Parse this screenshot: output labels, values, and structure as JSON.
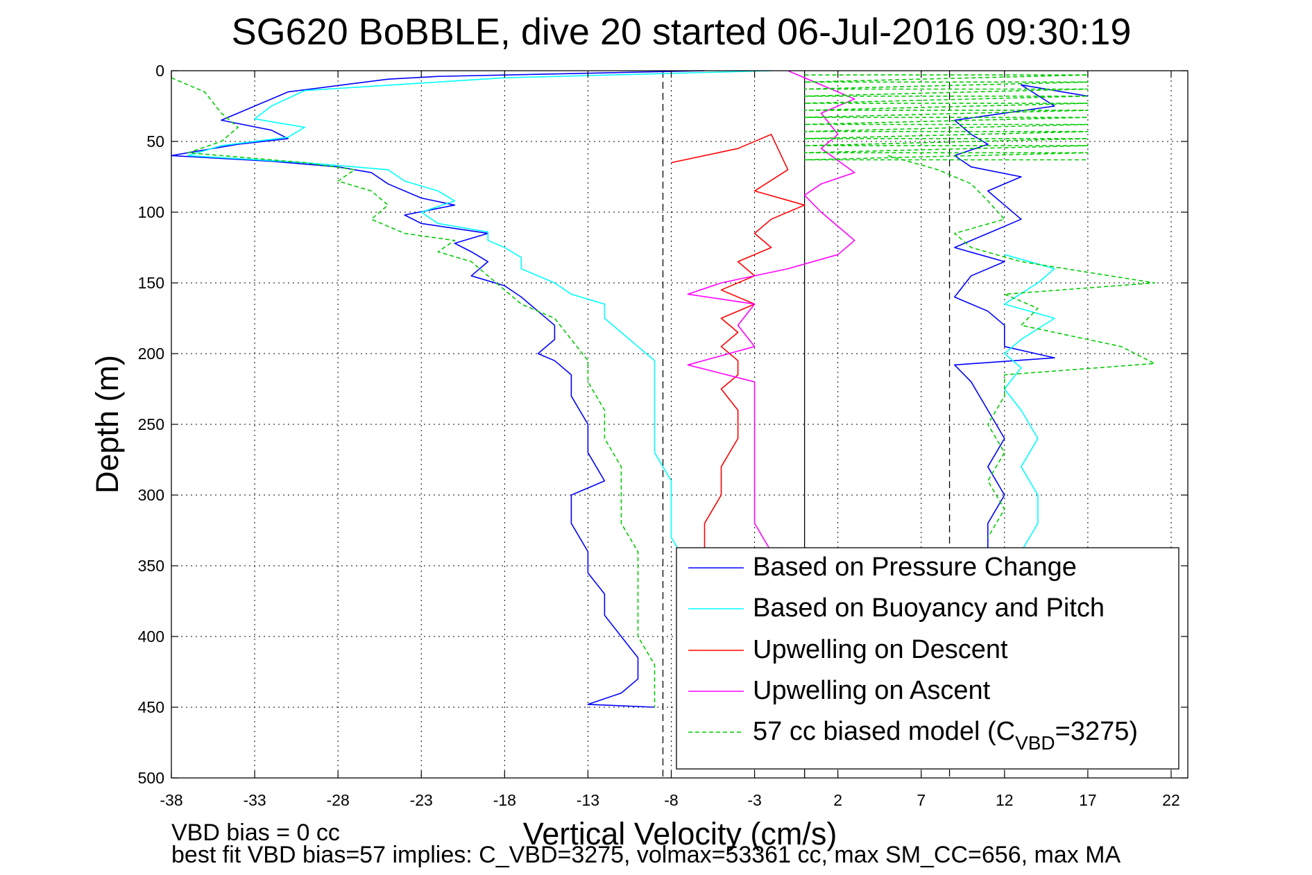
{
  "chart_data": {
    "type": "line",
    "title": "SG620 BoBBLE, dive 20 started 06-Jul-2016 09:30:19",
    "xlabel": "Vertical Velocity (cm/s)",
    "ylabel": "Depth (m)",
    "xlim": [
      -38,
      23
    ],
    "ylim": [
      0,
      500
    ],
    "y_reversed": true,
    "grid": true,
    "x_ticks": [
      -38,
      -33,
      -28,
      -23,
      -18,
      -13,
      -8,
      -3,
      2,
      7,
      12,
      17,
      22
    ],
    "y_ticks": [
      0,
      50,
      100,
      150,
      200,
      250,
      300,
      350,
      400,
      450,
      500
    ],
    "vertical_lines": [
      {
        "x": -8.5,
        "style": "dashed"
      },
      {
        "x": 0,
        "style": "solid"
      },
      {
        "x": 8.7,
        "style": "dashed"
      }
    ],
    "legend_position": "bottom-right",
    "legend": {
      "items": [
        {
          "text": "Based on Pressure Change",
          "color": "#0000ff",
          "dash": false
        },
        {
          "text": "Based on Buoyancy and Pitch",
          "color": "#00ffff",
          "dash": false
        },
        {
          "text": "Upwelling on Descent",
          "color": "#ff0000",
          "dash": false
        },
        {
          "text": "Upwelling on Ascent",
          "color": "#ff00ff",
          "dash": false
        }
      ],
      "biased_prefix": "57 cc biased model (C",
      "biased_sub": "VBD",
      "biased_suffix": "=3275)",
      "biased_color": "#00cc00"
    },
    "series": [
      {
        "name": "Based on Pressure Change",
        "color": "#0000ff",
        "dash": false,
        "descent": [
          [
            -6,
            0
          ],
          [
            -22,
            4
          ],
          [
            -25,
            6
          ],
          [
            -31,
            15
          ],
          [
            -33,
            25
          ],
          [
            -35,
            35
          ],
          [
            -32,
            42
          ],
          [
            -31,
            48
          ],
          [
            -34,
            52
          ],
          [
            -38,
            60
          ],
          [
            -32,
            64
          ],
          [
            -28,
            68
          ],
          [
            -26,
            72
          ],
          [
            -25,
            80
          ],
          [
            -23,
            90
          ],
          [
            -21,
            95
          ],
          [
            -24,
            102
          ],
          [
            -23,
            108
          ],
          [
            -19,
            115
          ],
          [
            -21,
            122
          ],
          [
            -20,
            128
          ],
          [
            -19,
            135
          ],
          [
            -20,
            145
          ],
          [
            -18,
            152
          ],
          [
            -17,
            160
          ],
          [
            -16,
            170
          ],
          [
            -15,
            180
          ],
          [
            -15,
            190
          ],
          [
            -16,
            200
          ],
          [
            -15,
            205
          ],
          [
            -14,
            215
          ],
          [
            -14,
            230
          ],
          [
            -13,
            250
          ],
          [
            -13,
            270
          ],
          [
            -12,
            290
          ],
          [
            -14,
            300
          ],
          [
            -14,
            320
          ],
          [
            -13,
            340
          ],
          [
            -13,
            355
          ],
          [
            -12,
            370
          ],
          [
            -12,
            385
          ],
          [
            -11,
            400
          ],
          [
            -10,
            415
          ],
          [
            -10,
            430
          ],
          [
            -11,
            440
          ],
          [
            -13,
            448
          ],
          [
            -9,
            450
          ]
        ],
        "ascent": [
          [
            17,
            18
          ],
          [
            13,
            10
          ],
          [
            15,
            25
          ],
          [
            9,
            35
          ],
          [
            10,
            45
          ],
          [
            11,
            52
          ],
          [
            9,
            60
          ],
          [
            10,
            68
          ],
          [
            13,
            75
          ],
          [
            11,
            85
          ],
          [
            12,
            95
          ],
          [
            13,
            105
          ],
          [
            11,
            115
          ],
          [
            9,
            125
          ],
          [
            12,
            135
          ],
          [
            10,
            145
          ],
          [
            9,
            160
          ],
          [
            11,
            170
          ],
          [
            12,
            180
          ],
          [
            12,
            195
          ],
          [
            15,
            203
          ],
          [
            9,
            208
          ],
          [
            10,
            220
          ],
          [
            11,
            240
          ],
          [
            12,
            260
          ],
          [
            11,
            280
          ],
          [
            12,
            300
          ],
          [
            11,
            320
          ],
          [
            11,
            340
          ]
        ]
      },
      {
        "name": "Based on Buoyancy and Pitch",
        "color": "#00ffff",
        "dash": false,
        "descent": [
          [
            -2,
            0
          ],
          [
            -18,
            5
          ],
          [
            -22,
            8
          ],
          [
            -30,
            14
          ],
          [
            -32,
            25
          ],
          [
            -33,
            34
          ],
          [
            -30,
            40
          ],
          [
            -31,
            47
          ],
          [
            -35,
            53
          ],
          [
            -37,
            60
          ],
          [
            -30,
            65
          ],
          [
            -25,
            70
          ],
          [
            -24,
            78
          ],
          [
            -22,
            85
          ],
          [
            -21,
            92
          ],
          [
            -23,
            100
          ],
          [
            -22,
            108
          ],
          [
            -19,
            114
          ],
          [
            -19,
            120
          ],
          [
            -18,
            125
          ],
          [
            -17,
            132
          ],
          [
            -17,
            140
          ],
          [
            -15,
            150
          ],
          [
            -14,
            158
          ],
          [
            -12,
            165
          ],
          [
            -12,
            175
          ],
          [
            -11,
            185
          ],
          [
            -10,
            195
          ],
          [
            -9,
            205
          ],
          [
            -9,
            215
          ],
          [
            -9,
            230
          ],
          [
            -9,
            250
          ],
          [
            -9,
            270
          ],
          [
            -8,
            290
          ],
          [
            -8,
            310
          ],
          [
            -8,
            330
          ],
          [
            -7,
            350
          ]
        ],
        "ascent": [
          [
            12,
            130
          ],
          [
            15,
            140
          ],
          [
            14,
            150
          ],
          [
            12,
            165
          ],
          [
            15,
            175
          ],
          [
            13,
            190
          ],
          [
            12,
            200
          ],
          [
            13,
            210
          ],
          [
            12,
            225
          ],
          [
            13,
            240
          ],
          [
            14,
            260
          ],
          [
            13,
            280
          ],
          [
            14,
            300
          ],
          [
            14,
            320
          ],
          [
            13,
            340
          ]
        ]
      },
      {
        "name": "Upwelling on Descent",
        "color": "#ff0000",
        "dash": false,
        "descent": [
          [
            -8,
            65
          ],
          [
            -4,
            55
          ],
          [
            -2,
            45
          ],
          [
            -1,
            70
          ],
          [
            -3,
            85
          ],
          [
            0,
            95
          ],
          [
            -2,
            105
          ],
          [
            -3,
            115
          ],
          [
            -2,
            125
          ],
          [
            -4,
            135
          ],
          [
            -3,
            145
          ],
          [
            -5,
            155
          ],
          [
            -3,
            165
          ],
          [
            -5,
            175
          ],
          [
            -4,
            185
          ],
          [
            -5,
            195
          ],
          [
            -4,
            205
          ],
          [
            -4,
            215
          ],
          [
            -5,
            225
          ],
          [
            -4,
            240
          ],
          [
            -4,
            260
          ],
          [
            -5,
            280
          ],
          [
            -5,
            300
          ],
          [
            -6,
            320
          ],
          [
            -6,
            340
          ]
        ]
      },
      {
        "name": "Upwelling on Ascent",
        "color": "#ff00ff",
        "dash": false,
        "ascent": [
          [
            -1,
            0
          ],
          [
            1,
            10
          ],
          [
            3,
            20
          ],
          [
            1,
            30
          ],
          [
            2,
            45
          ],
          [
            1,
            55
          ],
          [
            3,
            72
          ],
          [
            1,
            80
          ],
          [
            0,
            88
          ],
          [
            1,
            100
          ],
          [
            2,
            110
          ],
          [
            3,
            120
          ],
          [
            2,
            130
          ],
          [
            -1,
            140
          ],
          [
            -5,
            150
          ],
          [
            -7,
            158
          ],
          [
            -3,
            165
          ],
          [
            -4,
            180
          ],
          [
            -3,
            195
          ],
          [
            -7,
            208
          ],
          [
            -3,
            220
          ],
          [
            -3,
            240
          ],
          [
            -3,
            260
          ],
          [
            -3,
            280
          ],
          [
            -3,
            300
          ],
          [
            -3,
            320
          ],
          [
            -2,
            340
          ]
        ]
      },
      {
        "name": "57 cc biased model",
        "color": "#00cc00",
        "dash": true,
        "descent": [
          [
            -38,
            5
          ],
          [
            -36,
            15
          ],
          [
            -35,
            30
          ],
          [
            -34,
            40
          ],
          [
            -35,
            50
          ],
          [
            -37,
            58
          ],
          [
            -30,
            65
          ],
          [
            -27,
            70
          ],
          [
            -28,
            78
          ],
          [
            -26,
            85
          ],
          [
            -25,
            95
          ],
          [
            -26,
            105
          ],
          [
            -24,
            115
          ],
          [
            -21,
            120
          ],
          [
            -22,
            128
          ],
          [
            -20,
            135
          ],
          [
            -19,
            145
          ],
          [
            -18,
            155
          ],
          [
            -17,
            165
          ],
          [
            -15,
            175
          ],
          [
            -14,
            190
          ],
          [
            -13,
            205
          ],
          [
            -13,
            220
          ],
          [
            -12,
            240
          ],
          [
            -12,
            260
          ],
          [
            -11,
            280
          ],
          [
            -11,
            300
          ],
          [
            -11,
            320
          ],
          [
            -10,
            340
          ],
          [
            -10,
            360
          ],
          [
            -10,
            380
          ],
          [
            -10,
            400
          ],
          [
            -9,
            420
          ],
          [
            -9,
            440
          ],
          [
            -9,
            450
          ]
        ],
        "ascent": [
          [
            5,
            60
          ],
          [
            8,
            70
          ],
          [
            10,
            80
          ],
          [
            11,
            92
          ],
          [
            12,
            105
          ],
          [
            9,
            115
          ],
          [
            10,
            125
          ],
          [
            13,
            135
          ],
          [
            21,
            150
          ],
          [
            12,
            158
          ],
          [
            14,
            168
          ],
          [
            13,
            180
          ],
          [
            19,
            195
          ],
          [
            21,
            207
          ],
          [
            12,
            215
          ],
          [
            12,
            230
          ],
          [
            11,
            250
          ],
          [
            12,
            270
          ],
          [
            11,
            290
          ],
          [
            12,
            310
          ],
          [
            11,
            330
          ]
        ],
        "hatch": [
          [
            0,
            3
          ],
          [
            17,
            3
          ],
          [
            0,
            8
          ],
          [
            17,
            8
          ],
          [
            0,
            13
          ],
          [
            17,
            13
          ],
          [
            0,
            18
          ],
          [
            17,
            18
          ],
          [
            0,
            23
          ],
          [
            17,
            23
          ],
          [
            0,
            28
          ],
          [
            17,
            28
          ],
          [
            0,
            33
          ],
          [
            17,
            33
          ],
          [
            0,
            38
          ],
          [
            17,
            38
          ],
          [
            0,
            43
          ],
          [
            17,
            43
          ],
          [
            0,
            48
          ],
          [
            17,
            48
          ],
          [
            0,
            53
          ],
          [
            17,
            53
          ],
          [
            0,
            58
          ],
          [
            17,
            58
          ],
          [
            0,
            63
          ],
          [
            17,
            63
          ]
        ]
      }
    ]
  },
  "footer": {
    "line1": "VBD bias = 0 cc",
    "line2": "best fit VBD bias=57 implies: C_VBD=3275, volmax=53361 cc, max SM_CC=656, max MA"
  }
}
